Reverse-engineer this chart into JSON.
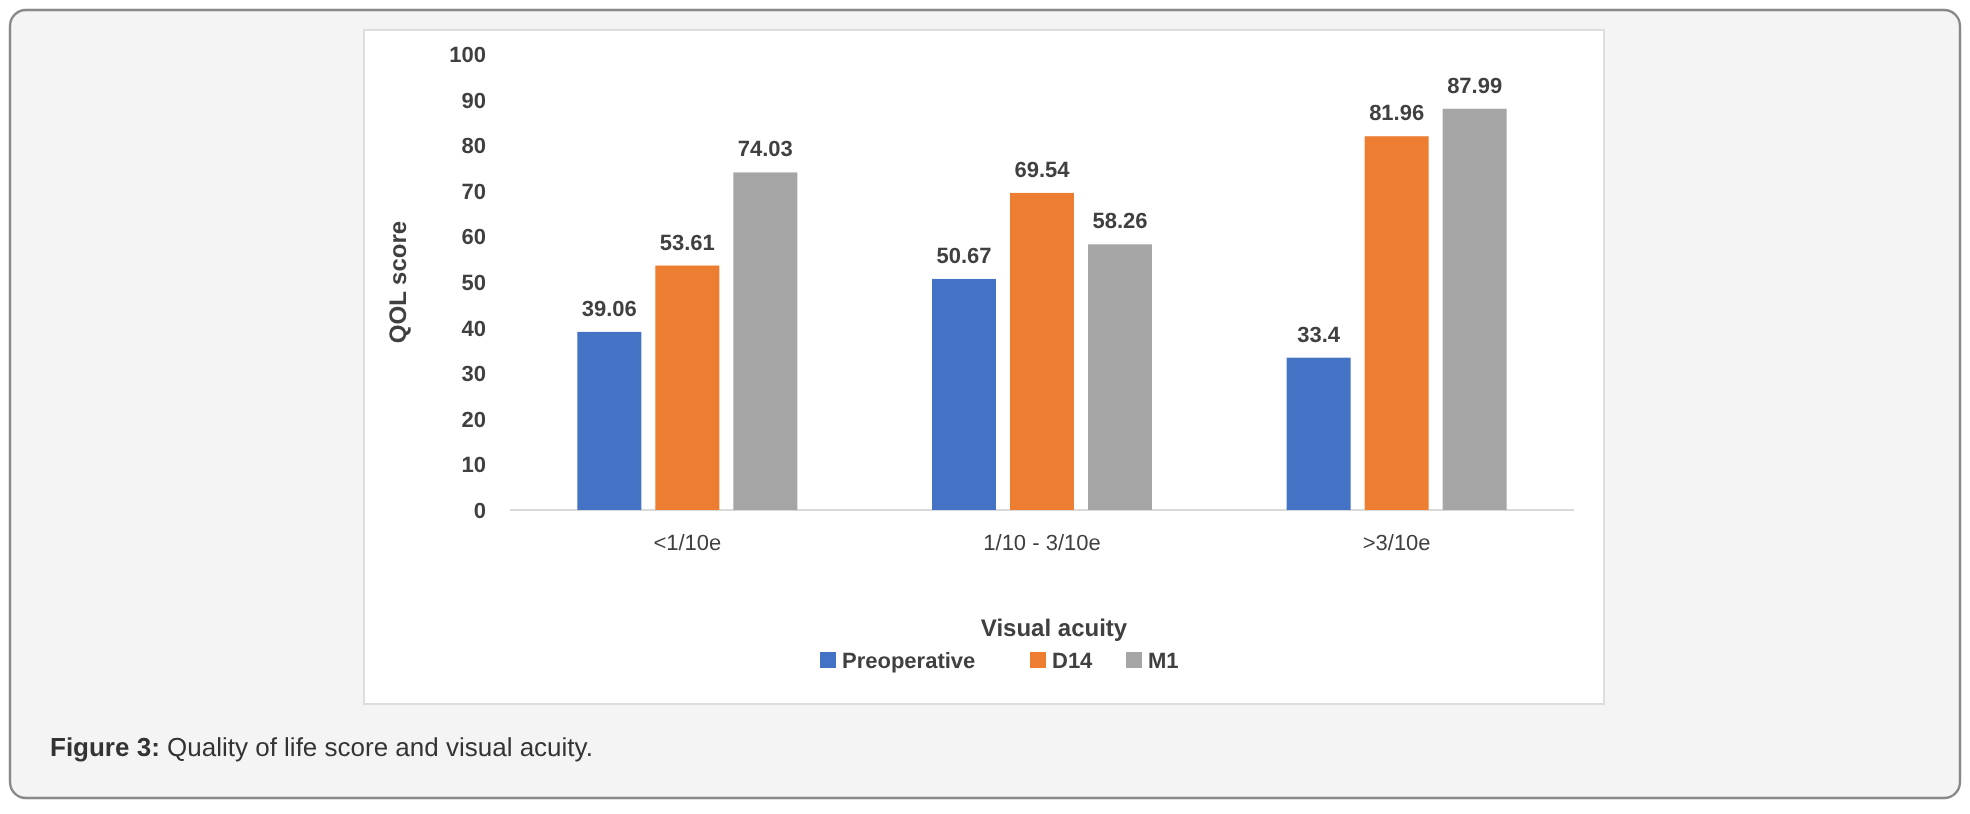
{
  "chart_data": {
    "type": "bar",
    "xlabel": "Visual acuity",
    "ylabel": "QOL score",
    "categories": [
      "<1/10e",
      "1/10 - 3/10e",
      ">3/10e"
    ],
    "series": [
      {
        "name": "Preoperative",
        "color": "#4472c4",
        "values": [
          39.06,
          50.67,
          33.4
        ]
      },
      {
        "name": "D14",
        "color": "#ed7d31",
        "values": [
          53.61,
          69.54,
          81.96
        ]
      },
      {
        "name": "M1",
        "color": "#a5a5a5",
        "values": [
          74.03,
          58.26,
          87.99
        ]
      }
    ],
    "ylim": [
      0,
      100
    ],
    "yticks": [
      0,
      10,
      20,
      30,
      40,
      50,
      60,
      70,
      80,
      90,
      100
    ],
    "grid": false,
    "legend": "bottom",
    "data_labels": true,
    "annotations": [
      "Figure 3: Quality of life score and visual acuity."
    ]
  }
}
